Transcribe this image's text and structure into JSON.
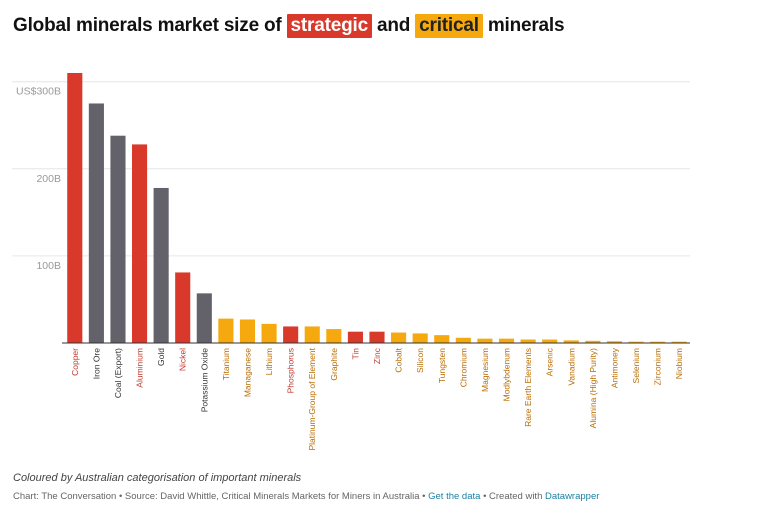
{
  "header": {
    "title_part1": "Global minerals market size of",
    "title_strategic": "strategic",
    "title_and": "and",
    "title_critical": "critical",
    "title_part2": "minerals"
  },
  "colors": {
    "strategic": "#d9392b",
    "critical": "#f5a90e",
    "other": "#63626a",
    "label_strategic": "#c0392b",
    "label_critical": "#b96b00",
    "label_other": "#333333"
  },
  "chart_data": {
    "type": "bar",
    "title": "Global minerals market size of strategic and critical minerals",
    "ylabel": "",
    "xlabel": "",
    "ylim": [
      0,
      310
    ],
    "yticks": [
      {
        "value": 100,
        "label": "100B"
      },
      {
        "value": 200,
        "label": "200B"
      },
      {
        "value": 300,
        "label": "US$300B"
      }
    ],
    "grid": true,
    "bars": [
      {
        "name": "Copper",
        "value": 310,
        "cat": "strategic"
      },
      {
        "name": "Iron Ore",
        "value": 275,
        "cat": "other"
      },
      {
        "name": "Coal (Export)",
        "value": 238,
        "cat": "other"
      },
      {
        "name": "Aluminium",
        "value": 228,
        "cat": "strategic"
      },
      {
        "name": "Gold",
        "value": 178,
        "cat": "other"
      },
      {
        "name": "Nickel",
        "value": 81,
        "cat": "strategic"
      },
      {
        "name": "Potassium Oxide",
        "value": 57,
        "cat": "other"
      },
      {
        "name": "Titanium",
        "value": 28,
        "cat": "critical"
      },
      {
        "name": "Managanese",
        "value": 27,
        "cat": "critical"
      },
      {
        "name": "Lithium",
        "value": 22,
        "cat": "critical"
      },
      {
        "name": "Phosphorus",
        "value": 19,
        "cat": "strategic"
      },
      {
        "name": "Platinum-Group of Element",
        "value": 19,
        "cat": "critical"
      },
      {
        "name": "Graphite",
        "value": 16,
        "cat": "critical"
      },
      {
        "name": "Tin",
        "value": 13,
        "cat": "strategic"
      },
      {
        "name": "Zinc",
        "value": 13,
        "cat": "strategic"
      },
      {
        "name": "Cobalt",
        "value": 12,
        "cat": "critical"
      },
      {
        "name": "Silicon",
        "value": 11,
        "cat": "critical"
      },
      {
        "name": "Tungsten",
        "value": 9,
        "cat": "critical"
      },
      {
        "name": "Chromium",
        "value": 6,
        "cat": "critical"
      },
      {
        "name": "Magnesium",
        "value": 5,
        "cat": "critical"
      },
      {
        "name": "Modlybdenum",
        "value": 5,
        "cat": "critical"
      },
      {
        "name": "Rare Earth Elements",
        "value": 4,
        "cat": "critical"
      },
      {
        "name": "Arsenic",
        "value": 4,
        "cat": "critical"
      },
      {
        "name": "Vanadium",
        "value": 3,
        "cat": "critical"
      },
      {
        "name": "Alumina (High Purity)",
        "value": 2.5,
        "cat": "critical"
      },
      {
        "name": "Antimoney",
        "value": 2,
        "cat": "critical"
      },
      {
        "name": "Selenium",
        "value": 1.5,
        "cat": "critical"
      },
      {
        "name": "Zirconium",
        "value": 1.5,
        "cat": "critical"
      },
      {
        "name": "Niobium",
        "value": 1.5,
        "cat": "critical"
      }
    ]
  },
  "footer": {
    "note": "Coloured by Australian categorisation of important minerals",
    "credit": "Chart: The Conversation • Source: David Whittle, Critical Minerals Markets for Miners in Australia •",
    "get_data": "Get the data",
    "sep": "• Created with",
    "datawrapper": "Datawrapper"
  }
}
